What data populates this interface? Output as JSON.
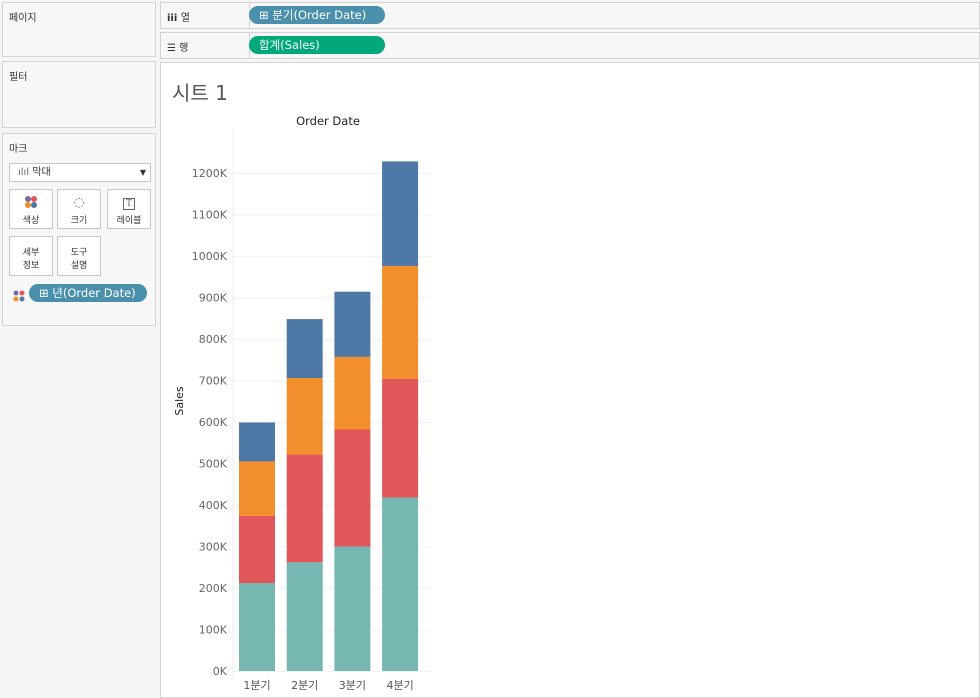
{
  "left": {
    "pages_title": "페이지",
    "filters_title": "필터",
    "marks_title": "마크",
    "mark_type": "막대",
    "mark_buttons": [
      {
        "label": "색상"
      },
      {
        "label": "크기"
      },
      {
        "label": "레이블"
      },
      {
        "label": "세부\n정보"
      },
      {
        "label": "도구\n설명"
      }
    ],
    "color_pill": "⊞ 년(Order Date)"
  },
  "shelves": {
    "columns_label": "열",
    "columns_pill": "⊞ 분기(Order Date)",
    "rows_label": "행",
    "rows_pill": "합계(Sales)"
  },
  "colors": {
    "pill_blue": "#4a90ad",
    "pill_green": "#00a87a"
  },
  "sheet": {
    "title": "시트 1"
  },
  "chart_data": {
    "type": "bar",
    "stacked": true,
    "title": "Order Date",
    "xlabel": "",
    "ylabel": "Sales",
    "categories": [
      "1분기",
      "2분기",
      "3분기",
      "4분기"
    ],
    "ylim": [
      0,
      1250000
    ],
    "yticks": [
      0,
      100000,
      200000,
      300000,
      400000,
      500000,
      600000,
      700000,
      800000,
      900000,
      1000000,
      1100000,
      1200000
    ],
    "ytick_labels": [
      "0K",
      "100K",
      "200K",
      "300K",
      "400K",
      "500K",
      "600K",
      "700K",
      "800K",
      "900K",
      "1000K",
      "1100K",
      "1200K"
    ],
    "grid": true,
    "series": [
      {
        "color": "#76b7b2",
        "values": [
          212000,
          262000,
          300000,
          418000
        ]
      },
      {
        "color": "#e15759",
        "values": [
          162000,
          260000,
          282000,
          286000
        ]
      },
      {
        "color": "#f28e2b",
        "values": [
          131000,
          184000,
          175000,
          272000
        ]
      },
      {
        "color": "#4e79a7",
        "values": [
          94000,
          142000,
          157000,
          252000
        ]
      }
    ]
  }
}
